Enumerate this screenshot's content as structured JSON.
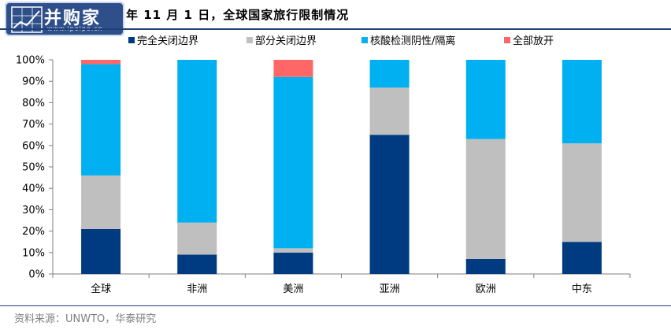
{
  "title": "年 11 月 1 日，全球国家旅行限制情况",
  "logo": {
    "text": "并购家",
    "url": "www.ipoipo.cn"
  },
  "source": "资料来源：UNWTO，华泰研究",
  "colors": {
    "series": [
      "#003a80",
      "#bfbfbf",
      "#00b0f0",
      "#ff6666"
    ],
    "axis": "#7f7f7f",
    "text": "#000000"
  },
  "chart_data": {
    "type": "bar",
    "stacked": true,
    "categories": [
      "全球",
      "非洲",
      "美洲",
      "亚洲",
      "欧洲",
      "中东"
    ],
    "series": [
      {
        "name": "完全关闭边界",
        "values": [
          21,
          9,
          10,
          65,
          7,
          15
        ]
      },
      {
        "name": "部分关闭边界",
        "values": [
          25,
          15,
          2,
          22,
          56,
          46
        ]
      },
      {
        "name": "核酸检测阴性/隔离",
        "values": [
          52,
          76,
          80,
          13,
          37,
          39
        ]
      },
      {
        "name": "全部放开",
        "values": [
          2,
          0,
          8,
          0,
          0,
          0
        ]
      }
    ],
    "ylim": [
      0,
      100
    ],
    "yticks": [
      "0%",
      "10%",
      "20%",
      "30%",
      "40%",
      "50%",
      "60%",
      "70%",
      "80%",
      "90%",
      "100%"
    ],
    "legend_position": "top",
    "grid": false
  }
}
